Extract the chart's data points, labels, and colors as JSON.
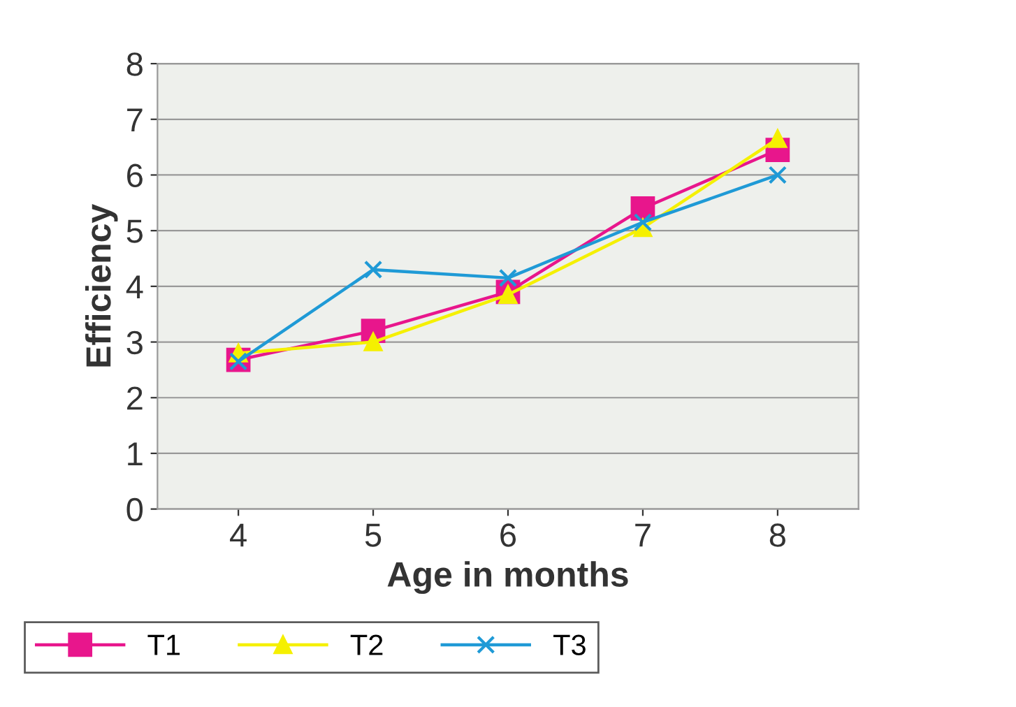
{
  "chart_data": {
    "type": "line",
    "xlabel": "Age in months",
    "ylabel": "Efficiency",
    "categories": [
      "4",
      "5",
      "6",
      "7",
      "8"
    ],
    "series": [
      {
        "name": "T1",
        "color": "#e8168c",
        "marker": "square",
        "values": [
          2.68,
          3.2,
          3.9,
          5.4,
          6.45
        ]
      },
      {
        "name": "T2",
        "color": "#f5f000",
        "marker": "triangle",
        "values": [
          2.8,
          3.0,
          3.85,
          5.05,
          6.65
        ]
      },
      {
        "name": "T3",
        "color": "#1f9ad6",
        "marker": "cross",
        "values": [
          2.65,
          4.3,
          4.15,
          5.15,
          6.0
        ]
      }
    ],
    "ylim": [
      0,
      8
    ],
    "yticks": [
      0,
      1,
      2,
      3,
      4,
      5,
      6,
      7,
      8
    ],
    "grid": "y",
    "legend": "bottom left",
    "line_style": "solid"
  }
}
